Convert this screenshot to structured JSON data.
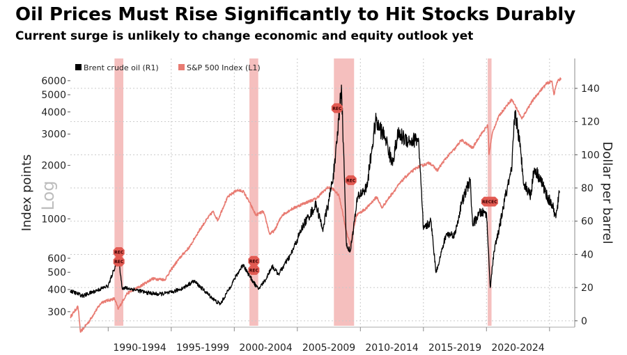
{
  "header": {
    "title": "Oil Prices Must Rise Significantly to Hit Stocks Durably",
    "subtitle": "Current surge is unlikely to change economic and equity outlook yet"
  },
  "chart_data": {
    "type": "line",
    "left_axis_label": "Index points",
    "left_axis_scale_label": "Log",
    "right_axis_label": "Dollar per barrel",
    "left_ticks": [
      300,
      400,
      500,
      600,
      1000,
      2000,
      3000,
      4000,
      5000,
      6000
    ],
    "right_ticks": [
      0,
      20,
      40,
      60,
      80,
      100,
      120,
      140
    ],
    "left_range": [
      250,
      8000
    ],
    "right_range": [
      -3,
      158
    ],
    "x_range": [
      1987.0,
      2027.0
    ],
    "x_period_labels": [
      "1990-1994",
      "1995-1999",
      "2000-2004",
      "2005-2009",
      "2010-2014",
      "2015-2019",
      "2020-2024"
    ],
    "x_period_centers": [
      1992.5,
      1997.5,
      2002.5,
      2007.5,
      2012.5,
      2017.5,
      2022.5
    ],
    "recessions": [
      {
        "start": 1990.5,
        "end": 1991.2,
        "label": "REC"
      },
      {
        "start": 2001.2,
        "end": 2001.9,
        "label": "REC"
      },
      {
        "start": 2007.9,
        "end": 2009.5,
        "label": "REC"
      },
      {
        "start": 2020.1,
        "end": 2020.4,
        "label": "RECEC"
      }
    ],
    "series": [
      {
        "name": "S&P 500 Index (L1)",
        "axis": "left",
        "color": "#e87b72",
        "points": [
          [
            1987.0,
            280
          ],
          [
            1987.6,
            320
          ],
          [
            1987.8,
            230
          ],
          [
            1988.5,
            265
          ],
          [
            1989.5,
            340
          ],
          [
            1990.5,
            355
          ],
          [
            1990.8,
            310
          ],
          [
            1991.5,
            380
          ],
          [
            1992.5,
            415
          ],
          [
            1993.5,
            460
          ],
          [
            1994.5,
            455
          ],
          [
            1995.5,
            580
          ],
          [
            1996.5,
            700
          ],
          [
            1997.5,
            920
          ],
          [
            1998.3,
            1100
          ],
          [
            1998.7,
            980
          ],
          [
            1999.5,
            1330
          ],
          [
            2000.2,
            1450
          ],
          [
            2000.7,
            1430
          ],
          [
            2001.3,
            1200
          ],
          [
            2001.7,
            1050
          ],
          [
            2002.3,
            1100
          ],
          [
            2002.8,
            820
          ],
          [
            2003.2,
            860
          ],
          [
            2003.8,
            1050
          ],
          [
            2004.5,
            1130
          ],
          [
            2005.5,
            1220
          ],
          [
            2006.5,
            1300
          ],
          [
            2007.4,
            1500
          ],
          [
            2007.8,
            1480
          ],
          [
            2008.3,
            1350
          ],
          [
            2008.8,
            900
          ],
          [
            2009.2,
            700
          ],
          [
            2009.7,
            1050
          ],
          [
            2010.5,
            1150
          ],
          [
            2011.3,
            1330
          ],
          [
            2011.7,
            1150
          ],
          [
            2012.5,
            1380
          ],
          [
            2013.5,
            1700
          ],
          [
            2014.5,
            1950
          ],
          [
            2015.5,
            2070
          ],
          [
            2016.1,
            1870
          ],
          [
            2016.8,
            2200
          ],
          [
            2017.5,
            2480
          ],
          [
            2018.0,
            2780
          ],
          [
            2018.9,
            2500
          ],
          [
            2019.5,
            2950
          ],
          [
            2020.1,
            3350
          ],
          [
            2020.2,
            2300
          ],
          [
            2020.5,
            3100
          ],
          [
            2021.0,
            3800
          ],
          [
            2022.0,
            4700
          ],
          [
            2022.8,
            3650
          ],
          [
            2023.5,
            4450
          ],
          [
            2024.2,
            5200
          ],
          [
            2024.8,
            5800
          ],
          [
            2025.2,
            5950
          ],
          [
            2025.35,
            5000
          ],
          [
            2025.6,
            5900
          ],
          [
            2025.9,
            6200
          ]
        ]
      },
      {
        "name": "Brent crude oil (R1)",
        "axis": "right",
        "color": "#000000",
        "points": [
          [
            1987.0,
            18
          ],
          [
            1988.0,
            15
          ],
          [
            1989.0,
            18
          ],
          [
            1990.0,
            21
          ],
          [
            1990.6,
            34
          ],
          [
            1990.8,
            40
          ],
          [
            1991.1,
            20
          ],
          [
            1992.0,
            19
          ],
          [
            1993.0,
            17
          ],
          [
            1994.0,
            16
          ],
          [
            1995.0,
            17
          ],
          [
            1996.0,
            20
          ],
          [
            1996.8,
            24
          ],
          [
            1997.5,
            19
          ],
          [
            1998.5,
            12
          ],
          [
            1998.9,
            10
          ],
          [
            1999.5,
            18
          ],
          [
            2000.0,
            25
          ],
          [
            2000.7,
            34
          ],
          [
            2001.2,
            27
          ],
          [
            2001.9,
            19
          ],
          [
            2002.5,
            25
          ],
          [
            2003.0,
            33
          ],
          [
            2003.5,
            28
          ],
          [
            2004.5,
            40
          ],
          [
            2005.5,
            58
          ],
          [
            2006.5,
            70
          ],
          [
            2007.0,
            55
          ],
          [
            2007.5,
            72
          ],
          [
            2008.0,
            95
          ],
          [
            2008.5,
            142
          ],
          [
            2008.9,
            45
          ],
          [
            2009.2,
            42
          ],
          [
            2009.8,
            75
          ],
          [
            2010.5,
            80
          ],
          [
            2011.2,
            120
          ],
          [
            2012.0,
            110
          ],
          [
            2012.5,
            95
          ],
          [
            2013.0,
            112
          ],
          [
            2014.0,
            108
          ],
          [
            2014.6,
            110
          ],
          [
            2015.0,
            55
          ],
          [
            2015.6,
            60
          ],
          [
            2016.0,
            29
          ],
          [
            2016.8,
            52
          ],
          [
            2017.5,
            52
          ],
          [
            2018.0,
            70
          ],
          [
            2018.7,
            85
          ],
          [
            2018.9,
            58
          ],
          [
            2019.5,
            65
          ],
          [
            2020.0,
            65
          ],
          [
            2020.3,
            20
          ],
          [
            2020.6,
            42
          ],
          [
            2021.0,
            55
          ],
          [
            2021.5,
            75
          ],
          [
            2022.0,
            90
          ],
          [
            2022.25,
            126
          ],
          [
            2022.5,
            115
          ],
          [
            2023.0,
            82
          ],
          [
            2023.5,
            76
          ],
          [
            2023.8,
            92
          ],
          [
            2024.3,
            85
          ],
          [
            2024.8,
            75
          ],
          [
            2025.2,
            70
          ],
          [
            2025.5,
            62
          ],
          [
            2025.8,
            78
          ]
        ]
      }
    ]
  }
}
